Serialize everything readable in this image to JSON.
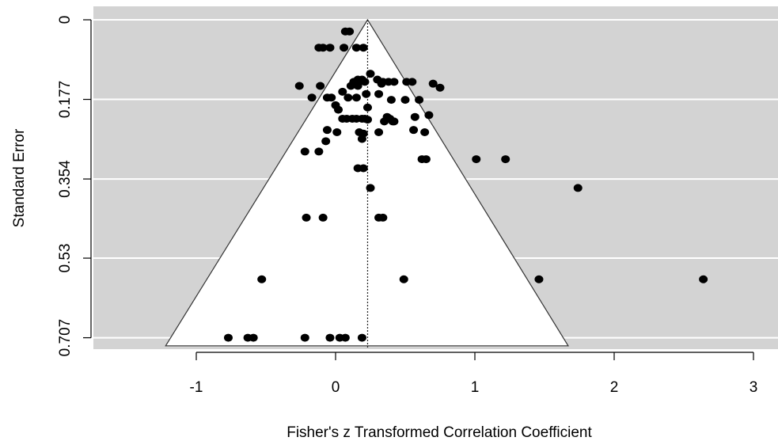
{
  "chart_data": {
    "type": "scatter",
    "subtype": "funnel plot",
    "title": "",
    "xlabel": "Fisher's z Transformed Correlation Coefficient",
    "ylabel": "Standard Error",
    "xlim": [
      -1.6,
      3.05
    ],
    "ylim": [
      0.725,
      0.0
    ],
    "y_axis_inverted": true,
    "x_ticks": [
      "-1",
      "0",
      "1",
      "2",
      "3"
    ],
    "x_tick_values": [
      -1,
      0,
      1,
      2,
      3
    ],
    "y_ticks": [
      "0",
      "0.177",
      "0.354",
      "0.53",
      "0.707"
    ],
    "y_tick_values": [
      0,
      0.177,
      0.354,
      0.53,
      0.707
    ],
    "grid": "horizontal white lines at y ticks",
    "background_colors": {
      "panel": "#d3d3d3",
      "funnel": "#ffffff",
      "points": "#000000",
      "gridline": "#ffffff"
    },
    "summary_estimate": 0.23,
    "funnel": {
      "apex": [
        0.23,
        0.0
      ],
      "base_left": [
        -1.22,
        0.725
      ],
      "base_right": [
        1.67,
        0.725
      ]
    },
    "points": [
      {
        "x": 0.07,
        "y": 0.026
      },
      {
        "x": 0.1,
        "y": 0.026
      },
      {
        "x": -0.12,
        "y": 0.062
      },
      {
        "x": -0.09,
        "y": 0.062
      },
      {
        "x": -0.04,
        "y": 0.062
      },
      {
        "x": 0.06,
        "y": 0.062
      },
      {
        "x": 0.15,
        "y": 0.062
      },
      {
        "x": 0.2,
        "y": 0.062
      },
      {
        "x": 0.25,
        "y": 0.12
      },
      {
        "x": 0.13,
        "y": 0.138
      },
      {
        "x": 0.16,
        "y": 0.133
      },
      {
        "x": 0.19,
        "y": 0.133
      },
      {
        "x": 0.21,
        "y": 0.138
      },
      {
        "x": 0.3,
        "y": 0.133
      },
      {
        "x": 0.34,
        "y": 0.138
      },
      {
        "x": 0.38,
        "y": 0.138
      },
      {
        "x": 0.42,
        "y": 0.138
      },
      {
        "x": 0.51,
        "y": 0.138
      },
      {
        "x": 0.55,
        "y": 0.138
      },
      {
        "x": 0.7,
        "y": 0.142
      },
      {
        "x": 0.75,
        "y": 0.151
      },
      {
        "x": -0.26,
        "y": 0.147
      },
      {
        "x": -0.11,
        "y": 0.147
      },
      {
        "x": 0.11,
        "y": 0.147
      },
      {
        "x": 0.16,
        "y": 0.147
      },
      {
        "x": 0.33,
        "y": 0.142
      },
      {
        "x": 0.05,
        "y": 0.16
      },
      {
        "x": 0.22,
        "y": 0.165
      },
      {
        "x": 0.31,
        "y": 0.165
      },
      {
        "x": 0.4,
        "y": 0.178
      },
      {
        "x": 0.5,
        "y": 0.178
      },
      {
        "x": 0.6,
        "y": 0.178
      },
      {
        "x": -0.17,
        "y": 0.173
      },
      {
        "x": -0.03,
        "y": 0.173
      },
      {
        "x": -0.06,
        "y": 0.173
      },
      {
        "x": 0.09,
        "y": 0.173
      },
      {
        "x": 0.15,
        "y": 0.173
      },
      {
        "x": 0.0,
        "y": 0.19
      },
      {
        "x": 0.02,
        "y": 0.2
      },
      {
        "x": 0.23,
        "y": 0.195
      },
      {
        "x": 0.05,
        "y": 0.22
      },
      {
        "x": 0.08,
        "y": 0.22
      },
      {
        "x": 0.12,
        "y": 0.22
      },
      {
        "x": 0.15,
        "y": 0.22
      },
      {
        "x": 0.19,
        "y": 0.22
      },
      {
        "x": 0.21,
        "y": 0.22
      },
      {
        "x": 0.23,
        "y": 0.222
      },
      {
        "x": 0.37,
        "y": 0.216
      },
      {
        "x": 0.39,
        "y": 0.22
      },
      {
        "x": 0.41,
        "y": 0.226
      },
      {
        "x": 0.35,
        "y": 0.226
      },
      {
        "x": 0.42,
        "y": 0.226
      },
      {
        "x": 0.57,
        "y": 0.216
      },
      {
        "x": 0.67,
        "y": 0.212
      },
      {
        "x": -0.06,
        "y": 0.245
      },
      {
        "x": 0.01,
        "y": 0.25
      },
      {
        "x": 0.17,
        "y": 0.25
      },
      {
        "x": 0.2,
        "y": 0.253
      },
      {
        "x": 0.31,
        "y": 0.25
      },
      {
        "x": 0.56,
        "y": 0.245
      },
      {
        "x": 0.64,
        "y": 0.25
      },
      {
        "x": -0.07,
        "y": 0.27
      },
      {
        "x": 0.19,
        "y": 0.265
      },
      {
        "x": -0.22,
        "y": 0.293
      },
      {
        "x": -0.12,
        "y": 0.293
      },
      {
        "x": 0.62,
        "y": 0.31
      },
      {
        "x": 0.65,
        "y": 0.31
      },
      {
        "x": 1.01,
        "y": 0.31
      },
      {
        "x": 1.22,
        "y": 0.31
      },
      {
        "x": 0.16,
        "y": 0.33
      },
      {
        "x": 0.2,
        "y": 0.33
      },
      {
        "x": 0.25,
        "y": 0.374
      },
      {
        "x": 1.74,
        "y": 0.374
      },
      {
        "x": -0.21,
        "y": 0.44
      },
      {
        "x": -0.09,
        "y": 0.44
      },
      {
        "x": 0.31,
        "y": 0.44
      },
      {
        "x": 0.34,
        "y": 0.44
      },
      {
        "x": -0.53,
        "y": 0.577
      },
      {
        "x": 0.49,
        "y": 0.577
      },
      {
        "x": 1.46,
        "y": 0.577
      },
      {
        "x": 2.64,
        "y": 0.577
      },
      {
        "x": -0.77,
        "y": 0.707
      },
      {
        "x": -0.63,
        "y": 0.707
      },
      {
        "x": -0.59,
        "y": 0.707
      },
      {
        "x": -0.22,
        "y": 0.707
      },
      {
        "x": -0.04,
        "y": 0.707
      },
      {
        "x": 0.03,
        "y": 0.707
      },
      {
        "x": 0.07,
        "y": 0.707
      },
      {
        "x": 0.19,
        "y": 0.707
      }
    ]
  }
}
